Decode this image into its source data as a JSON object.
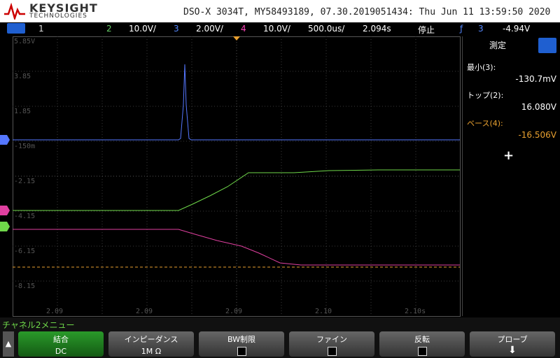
{
  "header": {
    "brand": "KEYSIGHT",
    "sub": "TECHNOLOGIES",
    "info": "DSO-X 3034T, MY58493189, 07.30.2019051434: Thu Jun 11 13:59:50 2020"
  },
  "status": {
    "ch1": "1",
    "ch2": "2",
    "ch2_scale": "10.0V/",
    "ch3": "3",
    "ch3_scale": "2.00V/",
    "ch4": "4",
    "ch4_scale": "10.0V/",
    "timebase": "500.0us/",
    "delay": "2.094s",
    "run_state": "停止",
    "trig_ch": "3",
    "trig_level": "-4.94V"
  },
  "plot": {
    "y_labels": [
      "5.85V",
      "3.85",
      "1.85",
      "-150m",
      "-2.15",
      "-4.15",
      "-6.15",
      "-8.15"
    ],
    "x_labels": [
      "2.09",
      "2.09",
      "2.09",
      "2.10",
      "2.10s"
    ]
  },
  "measure": {
    "title": "測定",
    "items": [
      {
        "label": "最小(3):",
        "value": "-130.7mV"
      },
      {
        "label": "トップ(2):",
        "value": "16.080V"
      },
      {
        "label": "ベース(4):",
        "value": "-16.506V"
      }
    ],
    "add": "+"
  },
  "menu": {
    "title": "チャネル2メニュー",
    "keys": [
      {
        "label": "結合",
        "value": "DC"
      },
      {
        "label": "インピーダンス",
        "value": "1M Ω"
      },
      {
        "label": "BW制限"
      },
      {
        "label": "ファイン"
      },
      {
        "label": "反転"
      },
      {
        "label": "プローブ"
      }
    ]
  }
}
